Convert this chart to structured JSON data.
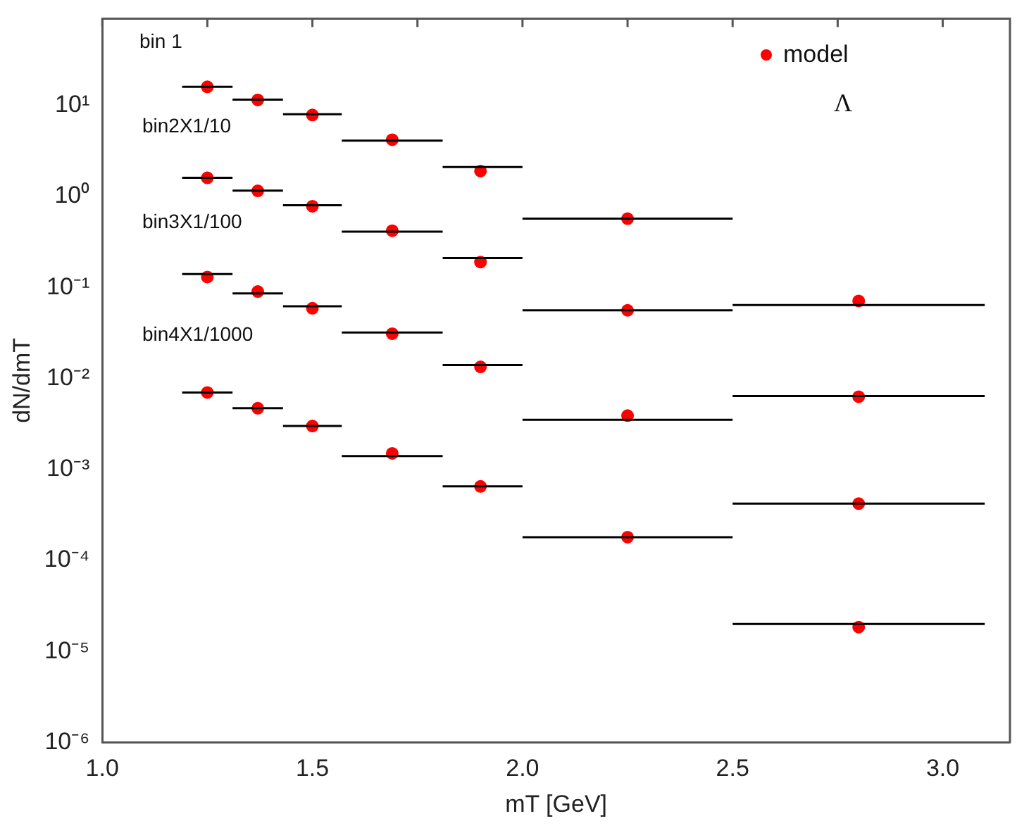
{
  "chart_data": {
    "type": "scatter",
    "xlabel": "mT [GeV]",
    "ylabel": "dN/dmT",
    "log": "y",
    "legend": "top right",
    "grid": false,
    "xlim": [
      1.0,
      3.16
    ],
    "ylim": [
      1e-06,
      90
    ],
    "xticks": [
      {
        "value": 1.0,
        "label": "1.0"
      },
      {
        "value": 1.25,
        "label": null
      },
      {
        "value": 1.5,
        "label": "1.5"
      },
      {
        "value": 1.75,
        "label": null
      },
      {
        "value": 2.0,
        "label": "2.0"
      },
      {
        "value": 2.25,
        "label": null
      },
      {
        "value": 2.5,
        "label": "2.5"
      },
      {
        "value": 2.75,
        "label": null
      },
      {
        "value": 3.0,
        "label": "3.0"
      }
    ],
    "yticks": [
      {
        "value": 1e-06,
        "label": "10⁻⁶"
      },
      {
        "value": 1e-05,
        "label": "10⁻⁵"
      },
      {
        "value": 0.0001,
        "label": "10⁻⁴"
      },
      {
        "value": 0.001,
        "label": "10⁻³"
      },
      {
        "value": 0.01,
        "label": "10⁻²"
      },
      {
        "value": 0.1,
        "label": "10⁻¹"
      },
      {
        "value": 1,
        "label": "10⁰"
      },
      {
        "value": 10,
        "label": "10¹"
      }
    ],
    "series": [
      {
        "type": "line",
        "color": "#000000",
        "marker": "none",
        "x": [
          1.19,
          1.31
        ],
        "values": [
          16,
          16
        ]
      },
      {
        "type": "line",
        "color": "#000000",
        "marker": "none",
        "x": [
          1.31,
          1.43
        ],
        "values": [
          11.6,
          11.6
        ]
      },
      {
        "type": "line",
        "color": "#000000",
        "marker": "none",
        "x": [
          1.43,
          1.57
        ],
        "values": [
          8,
          8
        ]
      },
      {
        "type": "line",
        "color": "#000000",
        "marker": "none",
        "x": [
          1.57,
          1.81
        ],
        "values": [
          4.1,
          4.1
        ]
      },
      {
        "type": "line",
        "color": "#000000",
        "marker": "none",
        "x": [
          1.81,
          2.0
        ],
        "values": [
          2.1,
          2.1
        ]
      },
      {
        "type": "line",
        "color": "#000000",
        "marker": "none",
        "x": [
          2.0,
          2.5
        ],
        "values": [
          0.57,
          0.57
        ]
      },
      {
        "type": "line",
        "color": "#000000",
        "marker": "none",
        "x": [
          2.5,
          3.1
        ],
        "values": [
          0.064,
          0.064
        ]
      },
      {
        "type": "line",
        "color": "#000000",
        "marker": "none",
        "x": [
          1.19,
          1.31
        ],
        "values": [
          1.6,
          1.6
        ]
      },
      {
        "type": "line",
        "color": "#000000",
        "marker": "none",
        "x": [
          1.31,
          1.43
        ],
        "values": [
          1.16,
          1.16
        ]
      },
      {
        "type": "line",
        "color": "#000000",
        "marker": "none",
        "x": [
          1.43,
          1.57
        ],
        "values": [
          0.8,
          0.8
        ]
      },
      {
        "type": "line",
        "color": "#000000",
        "marker": "none",
        "x": [
          1.57,
          1.81
        ],
        "values": [
          0.41,
          0.41
        ]
      },
      {
        "type": "line",
        "color": "#000000",
        "marker": "none",
        "x": [
          1.81,
          2.0
        ],
        "values": [
          0.21,
          0.21
        ]
      },
      {
        "type": "line",
        "color": "#000000",
        "marker": "none",
        "x": [
          2.0,
          2.5
        ],
        "values": [
          0.056,
          0.056
        ]
      },
      {
        "type": "line",
        "color": "#000000",
        "marker": "none",
        "x": [
          2.5,
          3.1
        ],
        "values": [
          0.0064,
          0.0064
        ]
      },
      {
        "type": "line",
        "color": "#000000",
        "marker": "none",
        "x": [
          1.19,
          1.31
        ],
        "values": [
          0.14,
          0.14
        ]
      },
      {
        "type": "line",
        "color": "#000000",
        "marker": "none",
        "x": [
          1.31,
          1.43
        ],
        "values": [
          0.086,
          0.086
        ]
      },
      {
        "type": "line",
        "color": "#000000",
        "marker": "none",
        "x": [
          1.43,
          1.57
        ],
        "values": [
          0.062,
          0.062
        ]
      },
      {
        "type": "line",
        "color": "#000000",
        "marker": "none",
        "x": [
          1.57,
          1.81
        ],
        "values": [
          0.032,
          0.032
        ]
      },
      {
        "type": "line",
        "color": "#000000",
        "marker": "none",
        "x": [
          1.81,
          2.0
        ],
        "values": [
          0.014,
          0.014
        ]
      },
      {
        "type": "line",
        "color": "#000000",
        "marker": "none",
        "x": [
          2.0,
          2.5
        ],
        "values": [
          0.0035,
          0.0035
        ]
      },
      {
        "type": "line",
        "color": "#000000",
        "marker": "none",
        "x": [
          2.5,
          3.1
        ],
        "values": [
          0.00042,
          0.00042
        ]
      },
      {
        "type": "line",
        "color": "#000000",
        "marker": "none",
        "x": [
          1.19,
          1.31
        ],
        "values": [
          0.007,
          0.007
        ]
      },
      {
        "type": "line",
        "color": "#000000",
        "marker": "none",
        "x": [
          1.31,
          1.43
        ],
        "values": [
          0.0047,
          0.0047
        ]
      },
      {
        "type": "line",
        "color": "#000000",
        "marker": "none",
        "x": [
          1.43,
          1.57
        ],
        "values": [
          0.003,
          0.003
        ]
      },
      {
        "type": "line",
        "color": "#000000",
        "marker": "none",
        "x": [
          1.57,
          1.81
        ],
        "values": [
          0.0014,
          0.0014
        ]
      },
      {
        "type": "line",
        "color": "#000000",
        "marker": "none",
        "x": [
          1.81,
          2.0
        ],
        "values": [
          0.00065,
          0.00065
        ]
      },
      {
        "type": "line",
        "color": "#000000",
        "marker": "none",
        "x": [
          2.0,
          2.5
        ],
        "values": [
          0.00018,
          0.00018
        ]
      },
      {
        "type": "line",
        "color": "#000000",
        "marker": "none",
        "x": [
          2.5,
          3.1
        ],
        "values": [
          2e-05,
          2e-05
        ]
      },
      {
        "name": "model",
        "color": "#ff0000",
        "marker": "circle",
        "x": [
          1.25,
          1.37,
          1.5,
          1.69,
          1.9,
          2.25,
          2.8,
          1.25,
          1.37,
          1.5,
          1.69,
          1.9,
          2.25,
          2.8,
          1.25,
          1.37,
          1.5,
          1.69,
          1.9,
          2.25,
          2.8,
          1.25,
          1.37,
          1.5,
          1.69,
          1.9,
          2.25,
          2.8
        ],
        "values": [
          16,
          11.5,
          7.85,
          4.2,
          1.9,
          0.57,
          0.071,
          1.6,
          1.15,
          0.78,
          0.42,
          0.19,
          0.056,
          0.0063,
          0.13,
          0.09,
          0.059,
          0.031,
          0.0134,
          0.0039,
          0.00042,
          0.007,
          0.0047,
          0.003,
          0.0015,
          0.00065,
          0.00018,
          1.85e-05
        ]
      }
    ],
    "annotations": [
      "bin 1",
      "bin2X1/10",
      "bin3X1/100",
      "bin4X1/1000",
      "Λ"
    ]
  }
}
